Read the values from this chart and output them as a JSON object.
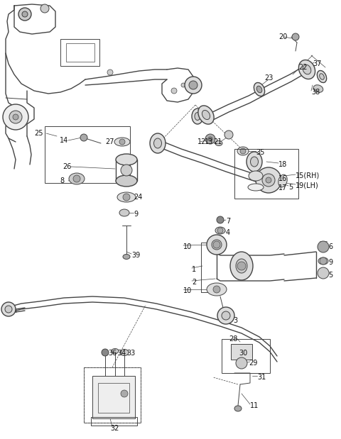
{
  "bg_color": "#ffffff",
  "line_color": "#444444",
  "gray1": "#888888",
  "gray2": "#aaaaaa",
  "gray3": "#cccccc",
  "gray4": "#dddddd",
  "gray5": "#eeeeee",
  "figsize": [
    4.8,
    6.19
  ],
  "dpi": 100,
  "xlim": [
    0,
    480
  ],
  "ylim": [
    0,
    619
  ],
  "label_fs": 7,
  "label_color": "#111111"
}
